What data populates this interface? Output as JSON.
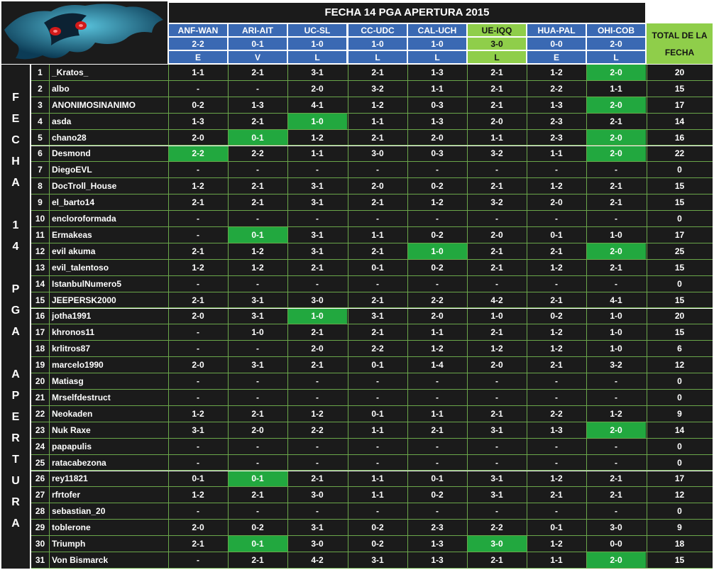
{
  "title": "FECHA 14 PGA APERTURA 2015",
  "total_header": "TOTAL DE LA FECHA",
  "side_label": [
    "F",
    "E",
    "C",
    "H",
    "A",
    "",
    "1",
    "4",
    "",
    "P",
    "G",
    "A",
    "",
    "A",
    "P",
    "E",
    "R",
    "T",
    "U",
    "R",
    "A"
  ],
  "matches": [
    {
      "teams": "ANF-WAN",
      "score": "2-2",
      "result": "E",
      "highlight": false
    },
    {
      "teams": "ARI-AIT",
      "score": "0-1",
      "result": "V",
      "highlight": false
    },
    {
      "teams": "UC-SL",
      "score": "1-0",
      "result": "L",
      "highlight": false
    },
    {
      "teams": "CC-UDC",
      "score": "1-0",
      "result": "L",
      "highlight": false
    },
    {
      "teams": "CAL-UCH",
      "score": "1-0",
      "result": "L",
      "highlight": false
    },
    {
      "teams": "UE-IQQ",
      "score": "3-0",
      "result": "L",
      "highlight": true
    },
    {
      "teams": "HUA-PAL",
      "score": "0-0",
      "result": "E",
      "highlight": false
    },
    {
      "teams": "OHI-COB",
      "score": "2-0",
      "result": "L",
      "highlight": false
    }
  ],
  "rows": [
    {
      "num": "1",
      "name": "_Kratos_",
      "picks": [
        "1-1",
        "2-1",
        "3-1",
        "2-1",
        "1-3",
        "2-1",
        "1-2",
        "2-0"
      ],
      "hits": [
        7
      ],
      "total": "20"
    },
    {
      "num": "2",
      "name": "albo",
      "picks": [
        "-",
        "-",
        "2-0",
        "3-2",
        "1-1",
        "2-1",
        "2-2",
        "1-1"
      ],
      "hits": [],
      "total": "15"
    },
    {
      "num": "3",
      "name": "ANONIMOSINANIMO",
      "picks": [
        "0-2",
        "1-3",
        "4-1",
        "1-2",
        "0-3",
        "2-1",
        "1-3",
        "2-0"
      ],
      "hits": [
        7
      ],
      "total": "17"
    },
    {
      "num": "4",
      "name": "asda",
      "picks": [
        "1-3",
        "2-1",
        "1-0",
        "1-1",
        "1-3",
        "2-0",
        "2-3",
        "2-1"
      ],
      "hits": [
        2
      ],
      "total": "14"
    },
    {
      "num": "5",
      "name": "chano28",
      "picks": [
        "2-0",
        "0-1",
        "1-2",
        "2-1",
        "2-0",
        "1-1",
        "2-3",
        "2-0"
      ],
      "hits": [
        1,
        7
      ],
      "total": "16"
    },
    {
      "num": "6",
      "name": "Desmond",
      "picks": [
        "2-2",
        "2-2",
        "1-1",
        "3-0",
        "0-3",
        "3-2",
        "1-1",
        "2-0"
      ],
      "hits": [
        0,
        7
      ],
      "total": "22"
    },
    {
      "num": "7",
      "name": "DiegoEVL",
      "picks": [
        "-",
        "-",
        "-",
        "-",
        "-",
        "-",
        "-",
        "-"
      ],
      "hits": [],
      "total": "0"
    },
    {
      "num": "8",
      "name": "DocTroll_House",
      "picks": [
        "1-2",
        "2-1",
        "3-1",
        "2-0",
        "0-2",
        "2-1",
        "1-2",
        "2-1"
      ],
      "hits": [],
      "total": "15"
    },
    {
      "num": "9",
      "name": "el_barto14",
      "picks": [
        "2-1",
        "2-1",
        "3-1",
        "2-1",
        "1-2",
        "3-2",
        "2-0",
        "2-1"
      ],
      "hits": [],
      "total": "15"
    },
    {
      "num": "10",
      "name": "encloroformada",
      "picks": [
        "-",
        "-",
        "-",
        "-",
        "-",
        "-",
        "-",
        "-"
      ],
      "hits": [],
      "total": "0"
    },
    {
      "num": "11",
      "name": "Ermakeas",
      "picks": [
        "-",
        "0-1",
        "3-1",
        "1-1",
        "0-2",
        "2-0",
        "0-1",
        "1-0"
      ],
      "hits": [
        1
      ],
      "total": "17"
    },
    {
      "num": "12",
      "name": "evil akuma",
      "picks": [
        "2-1",
        "1-2",
        "3-1",
        "2-1",
        "1-0",
        "2-1",
        "2-1",
        "2-0"
      ],
      "hits": [
        4,
        7
      ],
      "total": "25"
    },
    {
      "num": "13",
      "name": "evil_talentoso",
      "picks": [
        "1-2",
        "1-2",
        "2-1",
        "0-1",
        "0-2",
        "2-1",
        "1-2",
        "2-1"
      ],
      "hits": [],
      "total": "15"
    },
    {
      "num": "14",
      "name": "IstanbulNumero5",
      "picks": [
        "-",
        "-",
        "-",
        "-",
        "-",
        "-",
        "-",
        "-"
      ],
      "hits": [],
      "total": "0"
    },
    {
      "num": "15",
      "name": "JEEPERSK2000",
      "picks": [
        "2-1",
        "3-1",
        "3-0",
        "2-1",
        "2-2",
        "4-2",
        "2-1",
        "4-1"
      ],
      "hits": [],
      "total": "15"
    },
    {
      "num": "16",
      "name": "jotha1991",
      "picks": [
        "2-0",
        "3-1",
        "1-0",
        "3-1",
        "2-0",
        "1-0",
        "0-2",
        "1-0"
      ],
      "hits": [
        2
      ],
      "total": "20"
    },
    {
      "num": "17",
      "name": "khronos11",
      "picks": [
        "-",
        "1-0",
        "2-1",
        "2-1",
        "1-1",
        "2-1",
        "1-2",
        "1-0"
      ],
      "hits": [],
      "total": "15"
    },
    {
      "num": "18",
      "name": "krlitros87",
      "picks": [
        "-",
        "-",
        "2-0",
        "2-2",
        "1-2",
        "1-2",
        "1-2",
        "1-0"
      ],
      "hits": [],
      "total": "6"
    },
    {
      "num": "19",
      "name": "marcelo1990",
      "picks": [
        "2-0",
        "3-1",
        "2-1",
        "0-1",
        "1-4",
        "2-0",
        "2-1",
        "3-2"
      ],
      "hits": [],
      "total": "12"
    },
    {
      "num": "20",
      "name": "Matiasg",
      "picks": [
        "-",
        "-",
        "-",
        "-",
        "-",
        "-",
        "-",
        "-"
      ],
      "hits": [],
      "total": "0"
    },
    {
      "num": "21",
      "name": "Mrselfdestruct",
      "picks": [
        "-",
        "-",
        "-",
        "-",
        "-",
        "-",
        "-",
        "-"
      ],
      "hits": [],
      "total": "0"
    },
    {
      "num": "22",
      "name": "Neokaden",
      "picks": [
        "1-2",
        "2-1",
        "1-2",
        "0-1",
        "1-1",
        "2-1",
        "2-2",
        "1-2"
      ],
      "hits": [],
      "total": "9"
    },
    {
      "num": "23",
      "name": "Nuk Raxe",
      "picks": [
        "3-1",
        "2-0",
        "2-2",
        "1-1",
        "2-1",
        "3-1",
        "1-3",
        "2-0"
      ],
      "hits": [
        7
      ],
      "total": "14"
    },
    {
      "num": "24",
      "name": "papapulis",
      "picks": [
        "-",
        "-",
        "-",
        "-",
        "-",
        "-",
        "-",
        "-"
      ],
      "hits": [],
      "total": "0"
    },
    {
      "num": "25",
      "name": "ratacabezona",
      "picks": [
        "-",
        "-",
        "-",
        "-",
        "-",
        "-",
        "-",
        "-"
      ],
      "hits": [],
      "total": "0"
    },
    {
      "num": "26",
      "name": "rey11821",
      "picks": [
        "0-1",
        "0-1",
        "2-1",
        "1-1",
        "0-1",
        "3-1",
        "1-2",
        "2-1"
      ],
      "hits": [
        1
      ],
      "total": "17"
    },
    {
      "num": "27",
      "name": "rfrtofer",
      "picks": [
        "1-2",
        "2-1",
        "3-0",
        "1-1",
        "0-2",
        "3-1",
        "2-1",
        "2-1"
      ],
      "hits": [],
      "total": "12"
    },
    {
      "num": "28",
      "name": "sebastian_20",
      "picks": [
        "-",
        "-",
        "-",
        "-",
        "-",
        "-",
        "-",
        "-"
      ],
      "hits": [],
      "total": "0"
    },
    {
      "num": "29",
      "name": "toblerone",
      "picks": [
        "2-0",
        "0-2",
        "3-1",
        "0-2",
        "2-3",
        "2-2",
        "0-1",
        "3-0"
      ],
      "hits": [],
      "total": "9"
    },
    {
      "num": "30",
      "name": "Triumph",
      "picks": [
        "2-1",
        "0-1",
        "3-0",
        "0-2",
        "1-3",
        "3-0",
        "1-2",
        "0-0"
      ],
      "hits": [
        1,
        5
      ],
      "total": "18"
    },
    {
      "num": "31",
      "name": "Von Bismarck",
      "picks": [
        "-",
        "2-1",
        "4-2",
        "3-1",
        "1-3",
        "2-1",
        "1-1",
        "2-0"
      ],
      "hits": [
        7
      ],
      "total": "15"
    }
  ]
}
